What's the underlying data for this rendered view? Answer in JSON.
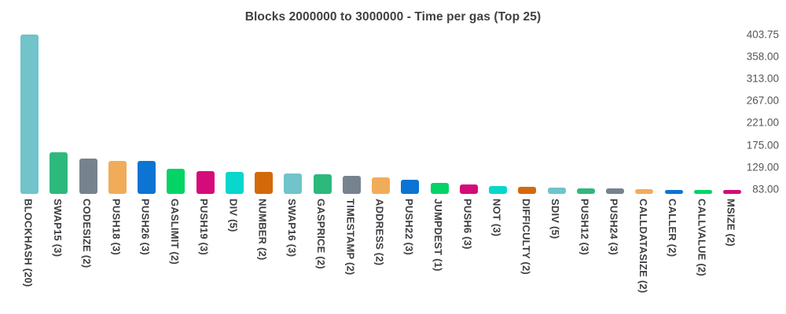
{
  "chart_data": {
    "type": "bar",
    "title": "Blocks 2000000 to 3000000 - Time per gas (Top 25)",
    "categories": [
      "BLOCKHASH (20)",
      "SWAP15 (3)",
      "CODESIZE (2)",
      "PUSH18 (3)",
      "PUSH26 (3)",
      "GASLIMIT (2)",
      "PUSH19 (3)",
      "DIV (5)",
      "NUMBER (2)",
      "SWAP16 (3)",
      "GASPRICE (2)",
      "TIMESTAMP (2)",
      "ADDRESS (2)",
      "PUSH22 (3)",
      "JUMPDEST (1)",
      "PUSH6 (3)",
      "NOT (3)",
      "DIFFICULTY (2)",
      "SDIV (5)",
      "PUSH12 (3)",
      "PUSH24 (3)",
      "CALLDATASIZE (2)",
      "CALLER (2)",
      "CALLVALUE (2)",
      "MSIZE (2)"
    ],
    "values": [
      403.75,
      159,
      146,
      141,
      142,
      125,
      121,
      118.5,
      118,
      116,
      113,
      110,
      107.5,
      103,
      95,
      93,
      90,
      87.5,
      86,
      84.5,
      84,
      82,
      81.5,
      81,
      80.5
    ],
    "xlabel": "",
    "ylabel": "",
    "ylim": [
      73,
      403.75
    ],
    "grid": false,
    "legend": "none",
    "y_axis_side": "right",
    "x_label_rotation": "vertical",
    "yticks": [
      {
        "label": "403.75",
        "value": 403.75
      },
      {
        "label": "358.00",
        "value": 357.93
      },
      {
        "label": "313.00",
        "value": 312.11
      },
      {
        "label": "267.00",
        "value": 266.29
      },
      {
        "label": "221.00",
        "value": 220.46
      },
      {
        "label": "175.00",
        "value": 174.64
      },
      {
        "label": "129.00",
        "value": 128.82
      },
      {
        "label": "83.00",
        "value": 83.0
      }
    ],
    "bar_colors_cycle": [
      "#70c4ca",
      "#2eb97c",
      "#76828e",
      "#f1ac59",
      "#0c74d3",
      "#04d365",
      "#d50b7a",
      "#09d6cd",
      "#d4690a"
    ],
    "colors": {
      "background": "#ffffff",
      "title_text": "#3e4043",
      "ytick_text": "#54565a",
      "xlabel_text": "#3c3e42"
    }
  }
}
